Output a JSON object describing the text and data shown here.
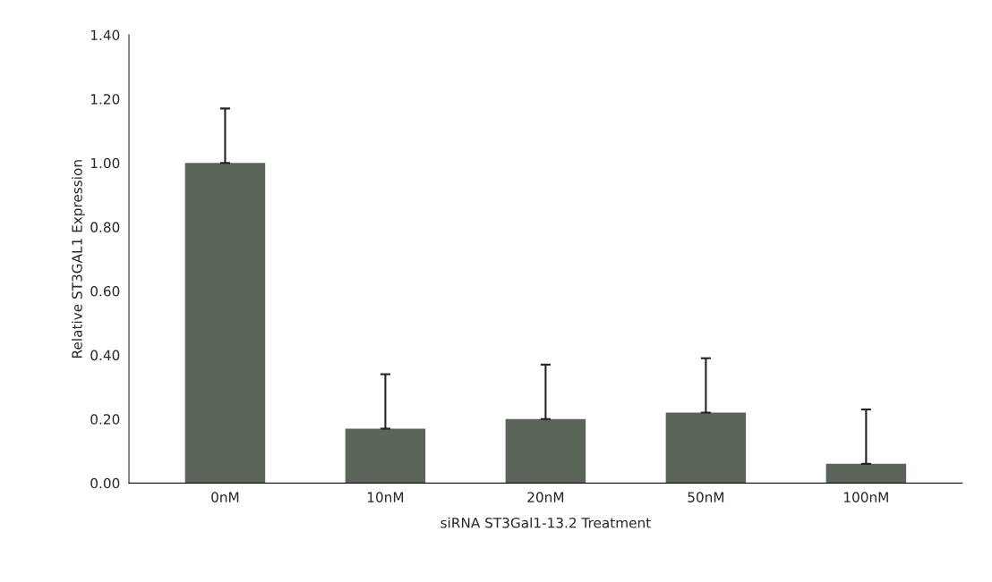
{
  "chart_data": {
    "type": "bar",
    "xlabel": "siRNA ST3Gal1-13.2 Treatment",
    "ylabel": "Relative ST3GAL1 Expression",
    "categories": [
      "0nM",
      "10nM",
      "20nM",
      "50nM",
      "100nM"
    ],
    "values": [
      1.0,
      0.17,
      0.2,
      0.22,
      0.06
    ],
    "errors": [
      [
        1.0,
        1.17
      ],
      [
        0.17,
        0.34
      ],
      [
        0.2,
        0.37
      ],
      [
        0.22,
        0.39
      ],
      [
        0.06,
        0.23
      ]
    ],
    "color": "#5b6459",
    "ylim": [
      0,
      1.4
    ],
    "yticks": [
      {
        "value": 0,
        "label": "0.00"
      },
      {
        "value": 0.2,
        "label": "0.20"
      },
      {
        "value": 0.4,
        "label": "0.40"
      },
      {
        "value": 0.6,
        "label": "0.60"
      },
      {
        "value": 0.8,
        "label": "0.80"
      },
      {
        "value": 1.0,
        "label": "1.00"
      },
      {
        "value": 1.2,
        "label": "1.20"
      },
      {
        "value": 1.4,
        "label": "1.40"
      }
    ],
    "grid": false
  }
}
